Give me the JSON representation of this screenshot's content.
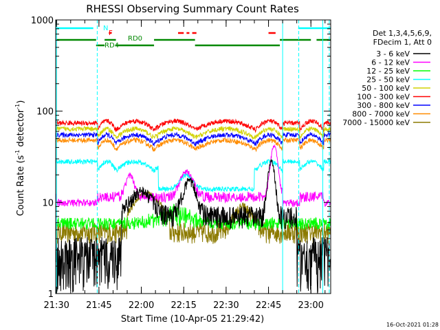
{
  "chart_data": {
    "type": "line",
    "title": "RHESSI Observing Summary Count Rates",
    "xlabel": "Start Time (10-Apr-05 21:29:42)",
    "ylabel_main": "Count Rate (s",
    "ylabel_sup1": "-1",
    "ylabel_mid": " detector",
    "ylabel_sup2": "-1",
    "ylabel_end": ")",
    "y_scale": "log",
    "ylim": [
      1,
      1000
    ],
    "xlim": [
      1290,
      2480
    ],
    "y_ticks": [
      {
        "value": 1,
        "label": "1"
      },
      {
        "value": 10,
        "label": "10"
      },
      {
        "value": 100,
        "label": "100"
      },
      {
        "value": 1000,
        "label": "1000"
      }
    ],
    "x_ticks": [
      {
        "value": 1290,
        "label": "21:30"
      },
      {
        "value": 1305,
        "label": "21:45"
      },
      {
        "value": 1320,
        "label": "22:00"
      },
      {
        "value": 1335,
        "label": "22:15"
      },
      {
        "value": 1350,
        "label": "22:30"
      },
      {
        "value": 1365,
        "label": "22:45"
      },
      {
        "value": 1380,
        "label": "23:00"
      }
    ],
    "legend_header": [
      "Det 1,3,4,5,6,9,",
      "FDecim 1, Att 0"
    ],
    "legend_placement": "right",
    "series": [
      {
        "name": "3 - 6 keV",
        "color": "#000000"
      },
      {
        "name": "6 - 12 keV",
        "color": "#ff00ff"
      },
      {
        "name": "12 - 25 keV",
        "color": "#00ff00"
      },
      {
        "name": "25 - 50 keV",
        "color": "#00ffff"
      },
      {
        "name": "50 - 100 keV",
        "color": "#d2d200"
      },
      {
        "name": "100 - 300 keV",
        "color": "#ff0000"
      },
      {
        "name": "300 - 800 keV",
        "color": "#0000ff"
      },
      {
        "name": "800 - 7000 keV",
        "color": "#ff8c00"
      },
      {
        "name": "7000 - 15000 keV",
        "color": "#8c7a00"
      }
    ],
    "flag_labels": {
      "saa": "N",
      "flare": "F",
      "decimation": "RD0",
      "attenuator": "RD4"
    },
    "timestamp": "16-Oct-2021 01:28"
  }
}
